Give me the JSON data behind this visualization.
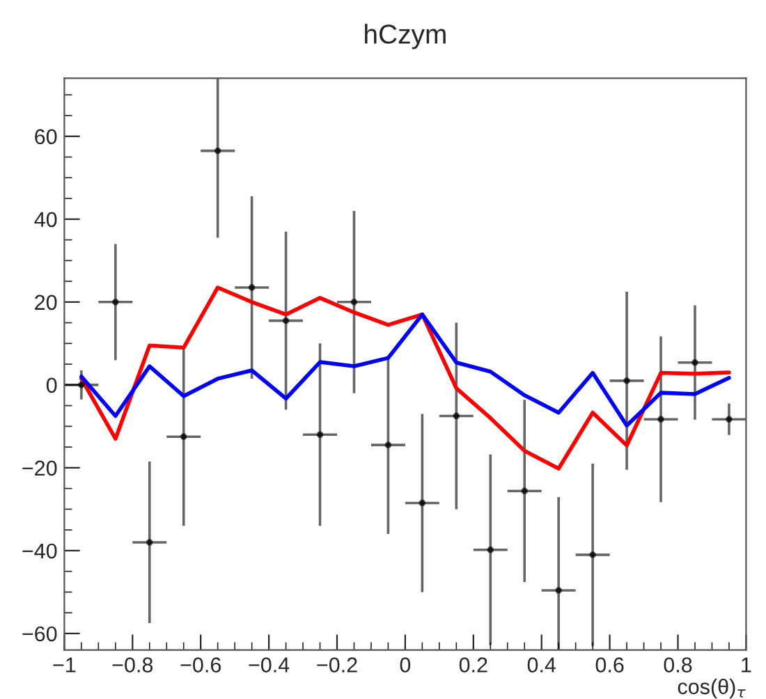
{
  "chart_data": {
    "type": "scatter",
    "title": "hCzym",
    "xlabel": "cos(θ)$_{τ}$",
    "xlim": [
      -1,
      1
    ],
    "ylim": [
      -64,
      74
    ],
    "xticks": [
      {
        "value": -1,
        "label": "−1"
      },
      {
        "value": -0.8,
        "label": "−0.8"
      },
      {
        "value": -0.6,
        "label": "−0.6"
      },
      {
        "value": -0.4,
        "label": "−0.4"
      },
      {
        "value": -0.2,
        "label": "−0.2"
      },
      0,
      0.2,
      0.4,
      0.6,
      0.8,
      1
    ],
    "yticks": [
      {
        "value": -60,
        "label": "−60"
      },
      {
        "value": -40,
        "label": "−40"
      },
      {
        "value": -20,
        "label": "−20"
      },
      0,
      20,
      40,
      60
    ],
    "grid": false,
    "legend": false,
    "series": [
      {
        "color": "#000000",
        "marker": "circle",
        "x": [
          -0.95,
          -0.85,
          -0.75,
          -0.65,
          -0.55,
          -0.45,
          -0.35,
          -0.25,
          -0.15,
          -0.05,
          0.05,
          0.15,
          0.25,
          0.35,
          0.45,
          0.55,
          0.65,
          0.75,
          0.85,
          0.95
        ],
        "values": [
          0,
          20,
          -38,
          -12.5,
          56.5,
          23.5,
          15.5,
          -12,
          20,
          -14.5,
          -28.5,
          -7.5,
          -39.8,
          -25.6,
          -49.6,
          -41,
          1,
          -8.3,
          5.4,
          -8.3
        ],
        "errors": [
          3.5,
          14,
          19.5,
          21.5,
          21,
          22,
          21.5,
          22,
          22,
          21.5,
          21.5,
          22.5,
          23,
          22,
          22.5,
          22,
          21.5,
          20,
          13.8,
          3.8
        ],
        "xerrors": [
          0.05,
          0.05,
          0.05,
          0.05,
          0.05,
          0.05,
          0.05,
          0.05,
          0.05,
          0.05,
          0.05,
          0.05,
          0.05,
          0.05,
          0.05,
          0.05,
          0.05,
          0.05,
          0.05,
          0.05
        ]
      },
      {
        "type": "line",
        "color": "#ff0000",
        "x": [
          -0.95,
          -0.85,
          -0.75,
          -0.65,
          -0.55,
          -0.45,
          -0.35,
          -0.25,
          -0.15,
          -0.05,
          0.05,
          0.15,
          0.25,
          0.35,
          0.45,
          0.55,
          0.65,
          0.75,
          0.85,
          0.95
        ],
        "values": [
          1.5,
          -13,
          9.5,
          9,
          23.5,
          20,
          17,
          21,
          17.5,
          14.5,
          17,
          -0.8,
          -8,
          -15.9,
          -20.2,
          -6.7,
          -14.6,
          2.9,
          2.7,
          3
        ]
      },
      {
        "type": "line",
        "color": "#0000ff",
        "x": [
          -0.95,
          -0.85,
          -0.75,
          -0.65,
          -0.55,
          -0.45,
          -0.35,
          -0.25,
          -0.15,
          -0.05,
          0.05,
          0.15,
          0.25,
          0.35,
          0.45,
          0.55,
          0.65,
          0.75,
          0.85,
          0.95
        ],
        "values": [
          2,
          -7.5,
          4.5,
          -2.7,
          1.5,
          3.5,
          -3.3,
          5.5,
          4.5,
          6.5,
          17,
          5.4,
          3.2,
          -2.5,
          -6.7,
          2.9,
          -9.8,
          -1.9,
          -2.2,
          1.7
        ]
      }
    ]
  }
}
